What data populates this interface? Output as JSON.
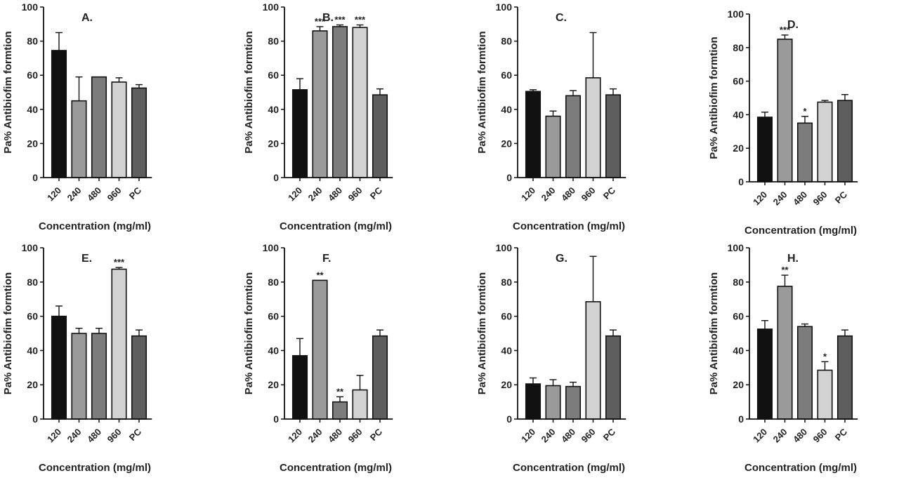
{
  "chart_data": [
    {
      "type": "bar",
      "panel": "A.",
      "categories": [
        "120",
        "240",
        "480",
        "960",
        "PC"
      ],
      "values": [
        74.5,
        45,
        59,
        56,
        52.5
      ],
      "errors": [
        10.5,
        14,
        0,
        2.5,
        2
      ],
      "significance": [
        "",
        "",
        "",
        "",
        ""
      ],
      "ylabel": "Pa% Antibiofim formtion",
      "xlabel": "Concentration (mg/ml)",
      "ylim": [
        0,
        100
      ],
      "yticks": [
        0,
        20,
        40,
        60,
        80,
        100
      ],
      "colors": [
        "#111111",
        "#9a9a9a",
        "#7c7c7c",
        "#d2d2d2",
        "#5e5e5e"
      ]
    },
    {
      "type": "bar",
      "panel": "B.",
      "categories": [
        "120",
        "240",
        "480",
        "960",
        "PC"
      ],
      "values": [
        51.5,
        86,
        88.5,
        88,
        48.5
      ],
      "errors": [
        6.5,
        2.5,
        1,
        1.5,
        3.5
      ],
      "significance": [
        "",
        "***",
        "***",
        "***",
        ""
      ],
      "ylabel": "Pa% Antibiofim formtion",
      "xlabel": "Concentration (mg/ml)",
      "ylim": [
        0,
        100
      ],
      "yticks": [
        0,
        20,
        40,
        60,
        80,
        100
      ],
      "colors": [
        "#111111",
        "#9a9a9a",
        "#7c7c7c",
        "#d2d2d2",
        "#5e5e5e"
      ]
    },
    {
      "type": "bar",
      "panel": "C.",
      "categories": [
        "120",
        "240",
        "480",
        "960",
        "PC"
      ],
      "values": [
        50.5,
        36,
        48,
        58.5,
        48.5
      ],
      "errors": [
        1,
        3,
        3,
        26.5,
        3.5
      ],
      "significance": [
        "",
        "",
        "",
        "",
        ""
      ],
      "ylabel": "Pa% Antibiofim formtion",
      "xlabel": "Concentration (mg/ml)",
      "ylim": [
        0,
        100
      ],
      "yticks": [
        0,
        20,
        40,
        60,
        80,
        100
      ],
      "colors": [
        "#111111",
        "#9a9a9a",
        "#7c7c7c",
        "#d2d2d2",
        "#5e5e5e"
      ]
    },
    {
      "type": "bar",
      "panel": "D.",
      "categories": [
        "120",
        "240",
        "480",
        "960",
        "PC"
      ],
      "values": [
        38.5,
        85,
        35,
        47.5,
        48.5
      ],
      "errors": [
        3,
        2.5,
        4,
        1,
        3.5
      ],
      "significance": [
        "",
        "***",
        "*",
        "",
        ""
      ],
      "ylabel": "Pa% Antibiofim formtion",
      "xlabel": "Concentration (mg/ml)",
      "ylim": [
        0,
        100
      ],
      "yticks": [
        0,
        20,
        40,
        60,
        80,
        100
      ],
      "colors": [
        "#111111",
        "#9a9a9a",
        "#7c7c7c",
        "#d2d2d2",
        "#5e5e5e"
      ]
    },
    {
      "type": "bar",
      "panel": "E.",
      "categories": [
        "120",
        "240",
        "480",
        "960",
        "PC"
      ],
      "values": [
        60,
        50,
        50,
        87.5,
        48.5
      ],
      "errors": [
        6,
        3,
        3,
        1,
        3.5
      ],
      "significance": [
        "",
        "",
        "",
        "***",
        ""
      ],
      "ylabel": "Pa% Antibiofim formtion",
      "xlabel": "Concentration (mg/ml)",
      "ylim": [
        0,
        100
      ],
      "yticks": [
        0,
        20,
        40,
        60,
        80,
        100
      ],
      "colors": [
        "#111111",
        "#9a9a9a",
        "#7c7c7c",
        "#d2d2d2",
        "#5e5e5e"
      ]
    },
    {
      "type": "bar",
      "panel": "F.",
      "categories": [
        "120",
        "240",
        "480",
        "960",
        "PC"
      ],
      "values": [
        37,
        81,
        10,
        17,
        48.5
      ],
      "errors": [
        10,
        0,
        3,
        8.5,
        3.5
      ],
      "significance": [
        "",
        "**",
        "**",
        "",
        ""
      ],
      "ylabel": "Pa% Antibiofim formtion",
      "xlabel": "Concentration (mg/ml)",
      "ylim": [
        0,
        100
      ],
      "yticks": [
        0,
        20,
        40,
        60,
        80,
        100
      ],
      "colors": [
        "#111111",
        "#9a9a9a",
        "#7c7c7c",
        "#d2d2d2",
        "#5e5e5e"
      ]
    },
    {
      "type": "bar",
      "panel": "G.",
      "categories": [
        "120",
        "240",
        "480",
        "960",
        "PC"
      ],
      "values": [
        20.5,
        19.5,
        19,
        68.5,
        48.5
      ],
      "errors": [
        3.5,
        3.5,
        2.5,
        26.5,
        3.5
      ],
      "significance": [
        "",
        "",
        "",
        "",
        ""
      ],
      "ylabel": "Pa% Antibiofim formtion",
      "xlabel": "Concentration (mg/ml)",
      "ylim": [
        0,
        100
      ],
      "yticks": [
        0,
        20,
        40,
        60,
        80,
        100
      ],
      "colors": [
        "#111111",
        "#9a9a9a",
        "#7c7c7c",
        "#d2d2d2",
        "#5e5e5e"
      ]
    },
    {
      "type": "bar",
      "panel": "H.",
      "categories": [
        "120",
        "240",
        "480",
        "960",
        "PC"
      ],
      "values": [
        52.5,
        77.5,
        54,
        28.5,
        48.5
      ],
      "errors": [
        5,
        6.5,
        1.5,
        5,
        3.5
      ],
      "significance": [
        "",
        "**",
        "",
        "*",
        ""
      ],
      "ylabel": "Pa% Antibiofim formtion",
      "xlabel": "Concentration (mg/ml)",
      "ylim": [
        0,
        100
      ],
      "yticks": [
        0,
        20,
        40,
        60,
        80,
        100
      ],
      "colors": [
        "#111111",
        "#9a9a9a",
        "#7c7c7c",
        "#d2d2d2",
        "#5e5e5e"
      ]
    }
  ]
}
